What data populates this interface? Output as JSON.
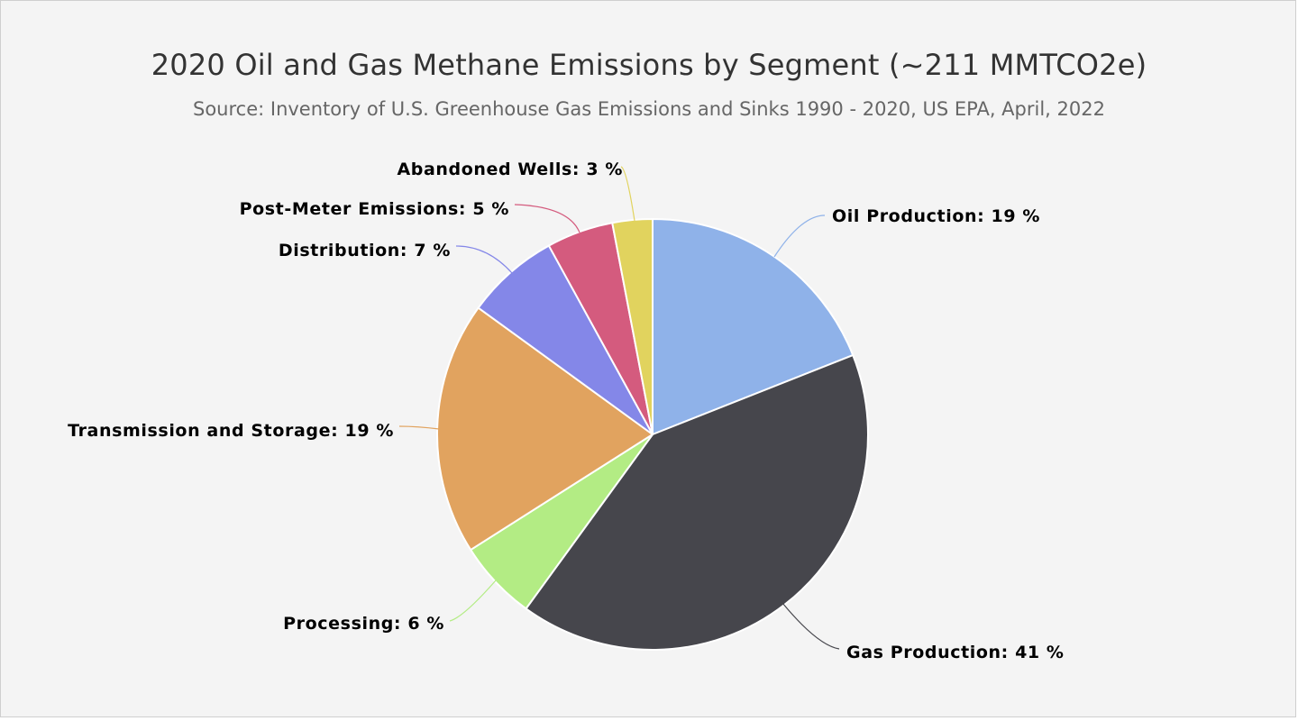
{
  "chart_data": {
    "type": "pie",
    "title": "2020 Oil and Gas Methane Emissions by Segment (~211 MMTCO2e)",
    "subtitle": "Source: Inventory of U.S. Greenhouse Gas Emissions and Sinks 1990 - 2020, US EPA, April, 2022",
    "unit": "%",
    "slices": [
      {
        "name": "Oil Production",
        "value": 19,
        "color": "#8fb2e9",
        "label": "Oil Production: 19 %"
      },
      {
        "name": "Gas Production",
        "value": 41,
        "color": "#46464c",
        "label": "Gas Production: 41 %"
      },
      {
        "name": "Processing",
        "value": 6,
        "color": "#b3ec84",
        "label": "Processing: 6 %"
      },
      {
        "name": "Transmission and Storage",
        "value": 19,
        "color": "#e1a35f",
        "label": "Transmission and Storage: 19 %"
      },
      {
        "name": "Distribution",
        "value": 7,
        "color": "#8487e8",
        "label": "Distribution: 7 %"
      },
      {
        "name": "Post-Meter Emissions",
        "value": 5,
        "color": "#d45b7e",
        "label": "Post-Meter Emissions: 5 %"
      },
      {
        "name": "Abandoned Wells",
        "value": 3,
        "color": "#e1d35e",
        "label": "Abandoned Wells: 3 %"
      }
    ],
    "start_angle_deg": 0,
    "direction": "clockwise",
    "legend": "none"
  }
}
